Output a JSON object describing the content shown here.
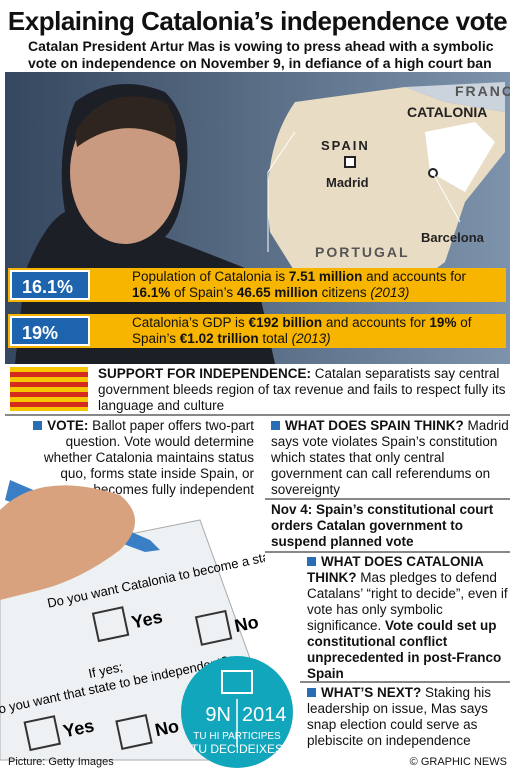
{
  "header": {
    "title": "Explaining Catalonia’s independence vote",
    "subtitle": "Catalan President Artur Mas is vowing to press ahead with a symbolic vote on independence on November 9, in defiance of a high court ban"
  },
  "map": {
    "labels": [
      "FRANCE",
      "CATALONIA",
      "SPAIN",
      "Madrid",
      "Barcelona",
      "PORTUGAL"
    ]
  },
  "stats": [
    {
      "figure": "16.1%",
      "text": [
        "Population of Catalonia is ",
        "7.51 million",
        " and accounts for ",
        "16.1%",
        " of Spain’s ",
        "46.65 million",
        " citizens ",
        "(2013)"
      ]
    },
    {
      "figure": "19%",
      "text": [
        "Catalonia’s GDP is ",
        "€192 billion",
        " and accounts for ",
        "19%",
        " of Spain’s ",
        "€1.02 trillion",
        " total ",
        "(2013)"
      ]
    }
  ],
  "support": [
    "SUPPORT FOR INDEPENDENCE:",
    " Catalan separatists say central government bleeds region of tax revenue and fails to respect fully its language and culture"
  ],
  "vote": [
    "VOTE:",
    " Ballot paper offers two-part question. Vote would determine whether Catalonia maintains status quo, forms state inside Spain, or becomes fully independent"
  ],
  "ballot": {
    "question1": "Do you want Catalonia to become a state?",
    "question2_intro": "If yes;",
    "question2": "Do you want that state to be independent?",
    "yes": "Yes",
    "no": "No"
  },
  "logo": {
    "date": "9N",
    "year": "2014",
    "line1": "TU HI PARTICIPES",
    "line2": "TU DECIDEIXES"
  },
  "spain": [
    "WHAT DOES SPAIN THINK?",
    " Madrid says vote violates Spain’s constitution which states that only central government can call referendums on sovereignty"
  ],
  "nov4": "Nov 4: Spain’s constitutional court orders Catalan government to suspend planned vote",
  "catalonia": [
    "WHAT DOES CATALONIA THINK?",
    " Mas pledges to defend Catalans’ “right to decide”, even if vote has only symbolic significance. ",
    "Vote could set up constitutional conflict unprecedented in post-Franco Spain"
  ],
  "next": [
    "WHAT’S NEXT?",
    " Staking his leadership on issue, Mas says snap election could serve as plebiscite on independence"
  ],
  "footer": {
    "credit": "Picture: Getty Images",
    "copyright": "© GRAPHIC NEWS"
  }
}
